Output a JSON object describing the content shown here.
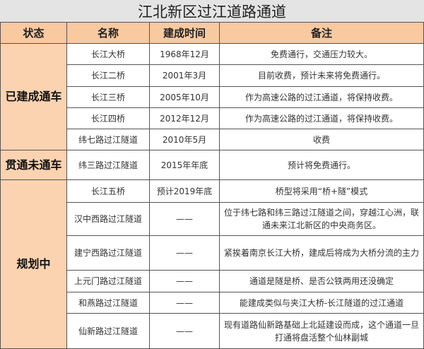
{
  "title": "江北新区过江道路通道",
  "headers": [
    "状态",
    "名称",
    "建成时间",
    "备注"
  ],
  "groups": [
    {
      "status": "已建成通车",
      "rows": [
        {
          "name": "长江大桥",
          "time": "1968年12月",
          "note": "免费通行，交通压力较大。"
        },
        {
          "name": "长江二桥",
          "time": "2001年3月",
          "note": "目前收费，预计未来将免费通行。"
        },
        {
          "name": "长江三桥",
          "time": "2005年10月",
          "note": "作为高速公路的过江通道，将保持收费。"
        },
        {
          "name": "长江四桥",
          "time": "2012年12月",
          "note": "作为高速公路的过江通道，将保持收费。"
        },
        {
          "name": "纬七路过江隧道",
          "time": "2010年5月",
          "note": "收费"
        }
      ]
    },
    {
      "status": "贯通未通车",
      "rows": [
        {
          "name": "纬三路过江隧道",
          "time": "2015年年底",
          "note": "预计将免费通行。"
        }
      ]
    },
    {
      "status": "规划中",
      "rows": [
        {
          "name": "长江五桥",
          "time": "预计2019年底",
          "note": "桥型将采用“桥+隧”模式"
        },
        {
          "name": "汉中西路过江隧道",
          "time": "——",
          "note": "位于纬七路和纬三路过江隧道之间，穿越江心洲，联通未来江北新区的中央商务区。"
        },
        {
          "name": "建宁西路过江隧道",
          "time": "——",
          "note": "紧挨着南京长江大桥，建成后将成为大桥分流的主力"
        },
        {
          "name": "上元门路过江隧道",
          "time": "——",
          "note": "通道是隧是桥、是否公铁两用还没确定"
        },
        {
          "name": "和燕路过江隧道",
          "time": "——",
          "note": "能建成类似与夹江大桥-长江隧道的过江通道"
        },
        {
          "name": "仙新路过江隧道",
          "time": "——",
          "note": "现有道路仙新路基础上北延建设而成，这个通道一旦打通将盘活整个仙林副城"
        }
      ]
    }
  ]
}
